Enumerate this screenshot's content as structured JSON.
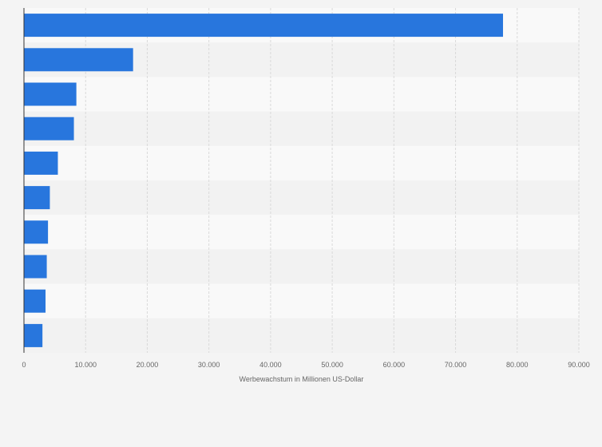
{
  "chart_data": {
    "type": "bar",
    "orientation": "horizontal",
    "xlabel": "Werbewachstum in Millionen US-Dollar",
    "ylabel": "",
    "xlim": [
      0,
      90000
    ],
    "x_ticks": [
      0,
      10000,
      20000,
      30000,
      40000,
      50000,
      60000,
      70000,
      80000,
      90000
    ],
    "x_tick_labels": [
      "0",
      "10.000",
      "20.000",
      "30.000",
      "40.000",
      "50.000",
      "60.000",
      "70.000",
      "80.000",
      "90.000"
    ],
    "categories": [
      "",
      "",
      "",
      "",
      "",
      "",
      "",
      "",
      "",
      ""
    ],
    "values": [
      77700,
      17700,
      8500,
      8100,
      5500,
      4200,
      3900,
      3700,
      3500,
      3000
    ],
    "grid": true,
    "colors": {
      "bar": "#2876dd",
      "background": "#f4f4f4",
      "band_light": "#f9f9f9",
      "band_dark": "#f2f2f2",
      "grid": "#d9d9d9",
      "axis": "#333333",
      "text": "#666666"
    }
  }
}
